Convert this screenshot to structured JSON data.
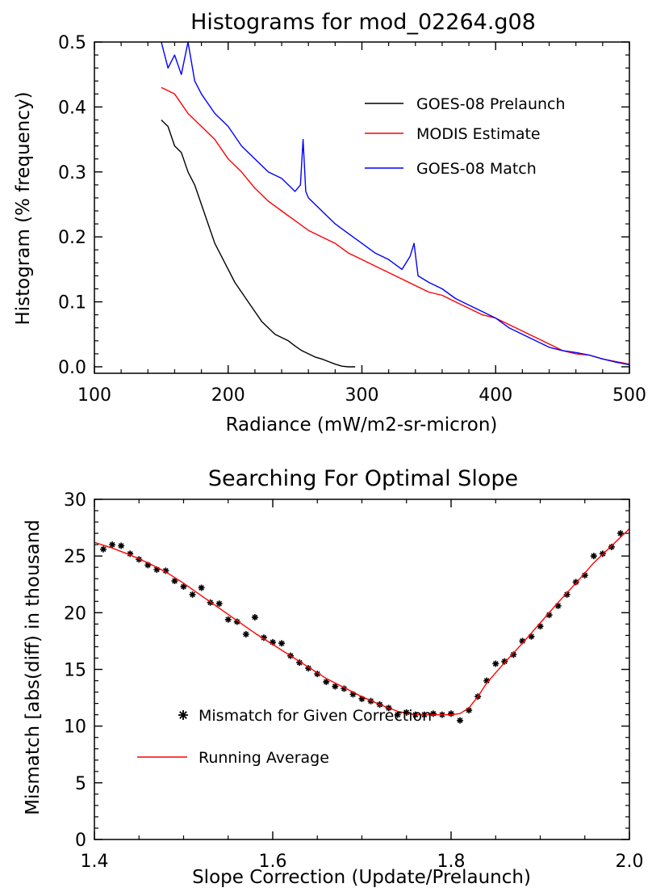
{
  "chart_data": [
    {
      "type": "line",
      "title": "Histograms for mod_02264.g08",
      "xlabel": "Radiance (mW/m2-sr-micron)",
      "ylabel": "Histogram (% frequency)",
      "xlim": [
        100,
        500
      ],
      "ylim": [
        -0.01,
        0.5
      ],
      "xticks": [
        100,
        200,
        300,
        400,
        500
      ],
      "yticks": [
        0.0,
        0.1,
        0.2,
        0.3,
        0.4,
        0.5
      ],
      "xtick_labels": [
        "100",
        "200",
        "300",
        "400",
        "500"
      ],
      "ytick_labels": [
        "0.0",
        "0.1",
        "0.2",
        "0.3",
        "0.4",
        "0.5"
      ],
      "grid": false,
      "legend_position": "top-right",
      "series": [
        {
          "name": "GOES-08 Prelaunch",
          "color": "#000000",
          "x": [
            150,
            155,
            160,
            165,
            170,
            175,
            180,
            185,
            190,
            195,
            200,
            205,
            210,
            215,
            220,
            225,
            230,
            235,
            240,
            245,
            250,
            255,
            260,
            265,
            270,
            275,
            280,
            285,
            290,
            295
          ],
          "y": [
            0.38,
            0.37,
            0.34,
            0.33,
            0.3,
            0.28,
            0.25,
            0.22,
            0.19,
            0.17,
            0.15,
            0.13,
            0.115,
            0.1,
            0.085,
            0.07,
            0.06,
            0.05,
            0.045,
            0.04,
            0.032,
            0.025,
            0.02,
            0.015,
            0.012,
            0.008,
            0.004,
            0.001,
            0.0,
            0.0
          ]
        },
        {
          "name": "MODIS Estimate",
          "color": "#ff0000",
          "x": [
            150,
            160,
            170,
            180,
            190,
            200,
            210,
            220,
            230,
            240,
            250,
            260,
            270,
            280,
            290,
            300,
            310,
            320,
            330,
            340,
            350,
            360,
            370,
            380,
            390,
            400,
            410,
            420,
            430,
            440,
            450,
            460,
            470,
            480,
            490,
            500
          ],
          "y": [
            0.43,
            0.42,
            0.39,
            0.37,
            0.35,
            0.32,
            0.3,
            0.275,
            0.255,
            0.24,
            0.225,
            0.21,
            0.2,
            0.19,
            0.175,
            0.165,
            0.155,
            0.145,
            0.135,
            0.125,
            0.115,
            0.11,
            0.1,
            0.09,
            0.08,
            0.075,
            0.065,
            0.055,
            0.045,
            0.035,
            0.025,
            0.02,
            0.018,
            0.012,
            0.008,
            0.004
          ]
        },
        {
          "name": "GOES-08 Match",
          "color": "#0000ff",
          "x": [
            150,
            155,
            160,
            165,
            170,
            175,
            180,
            190,
            200,
            210,
            220,
            230,
            240,
            250,
            254,
            256,
            258,
            260,
            270,
            280,
            290,
            300,
            310,
            320,
            330,
            336,
            339,
            342,
            350,
            360,
            370,
            380,
            390,
            400,
            410,
            420,
            430,
            440,
            450,
            460,
            470,
            480,
            490,
            500
          ],
          "y": [
            0.5,
            0.46,
            0.48,
            0.45,
            0.5,
            0.44,
            0.42,
            0.39,
            0.37,
            0.34,
            0.32,
            0.3,
            0.29,
            0.27,
            0.28,
            0.35,
            0.27,
            0.26,
            0.24,
            0.22,
            0.205,
            0.19,
            0.175,
            0.165,
            0.15,
            0.17,
            0.19,
            0.14,
            0.13,
            0.12,
            0.105,
            0.095,
            0.085,
            0.075,
            0.06,
            0.05,
            0.04,
            0.03,
            0.025,
            0.022,
            0.018,
            0.012,
            0.007,
            0.003
          ]
        }
      ]
    },
    {
      "type": "scatter",
      "title": "Searching For Optimal Slope",
      "xlabel": "Slope Correction (Update/Prelaunch)",
      "ylabel": "Mismatch [abs(diff) in thousand",
      "xlim": [
        1.4,
        2.0
      ],
      "ylim": [
        0,
        30
      ],
      "xticks": [
        1.4,
        1.6,
        1.8,
        2.0
      ],
      "yticks": [
        0,
        5,
        10,
        15,
        20,
        25,
        30
      ],
      "xtick_labels": [
        "1.4",
        "1.6",
        "1.8",
        "2.0"
      ],
      "ytick_labels": [
        "0",
        "5",
        "10",
        "15",
        "20",
        "25",
        "30"
      ],
      "grid": false,
      "legend_position": "bottom-left",
      "series": [
        {
          "name": "Mismatch for Given Correction",
          "color": "#000000",
          "marker": "asterisk",
          "x": [
            1.41,
            1.42,
            1.43,
            1.44,
            1.45,
            1.46,
            1.47,
            1.48,
            1.49,
            1.5,
            1.51,
            1.52,
            1.53,
            1.54,
            1.55,
            1.56,
            1.57,
            1.58,
            1.59,
            1.6,
            1.61,
            1.62,
            1.63,
            1.64,
            1.65,
            1.66,
            1.67,
            1.68,
            1.69,
            1.7,
            1.71,
            1.72,
            1.73,
            1.74,
            1.75,
            1.76,
            1.77,
            1.78,
            1.79,
            1.8,
            1.81,
            1.82,
            1.83,
            1.84,
            1.85,
            1.86,
            1.87,
            1.88,
            1.89,
            1.9,
            1.91,
            1.92,
            1.93,
            1.94,
            1.95,
            1.96,
            1.97,
            1.98,
            1.99
          ],
          "y": [
            25.6,
            26.0,
            25.9,
            25.2,
            24.7,
            24.2,
            23.8,
            23.7,
            22.8,
            22.3,
            21.6,
            22.2,
            20.9,
            20.8,
            19.4,
            19.2,
            18.1,
            19.6,
            17.8,
            17.4,
            17.3,
            16.2,
            15.6,
            15.1,
            14.6,
            13.9,
            13.5,
            13.3,
            12.8,
            12.4,
            12.2,
            11.9,
            11.6,
            11.0,
            11.2,
            11.0,
            11.0,
            11.1,
            11.0,
            11.1,
            10.5,
            11.4,
            12.6,
            14.0,
            15.5,
            15.7,
            16.3,
            17.5,
            17.9,
            18.8,
            19.8,
            20.6,
            21.6,
            22.7,
            23.3,
            25.0,
            25.2,
            25.8,
            27.0
          ]
        },
        {
          "name": "Running Average",
          "color": "#ff0000",
          "x": [
            1.4,
            1.42,
            1.44,
            1.46,
            1.48,
            1.5,
            1.52,
            1.54,
            1.56,
            1.58,
            1.6,
            1.62,
            1.64,
            1.66,
            1.68,
            1.7,
            1.72,
            1.74,
            1.76,
            1.78,
            1.8,
            1.81,
            1.82,
            1.83,
            1.84,
            1.86,
            1.88,
            1.9,
            1.92,
            1.94,
            1.96,
            1.98,
            2.0
          ],
          "y": [
            26.2,
            25.7,
            25.1,
            24.4,
            23.6,
            22.6,
            21.5,
            20.4,
            19.3,
            18.2,
            17.2,
            16.2,
            15.2,
            14.2,
            13.4,
            12.6,
            11.9,
            11.3,
            11.0,
            11.0,
            11.0,
            11.1,
            11.6,
            12.6,
            13.8,
            15.6,
            17.3,
            19.1,
            20.9,
            22.6,
            24.4,
            25.9,
            27.4
          ]
        }
      ]
    }
  ]
}
